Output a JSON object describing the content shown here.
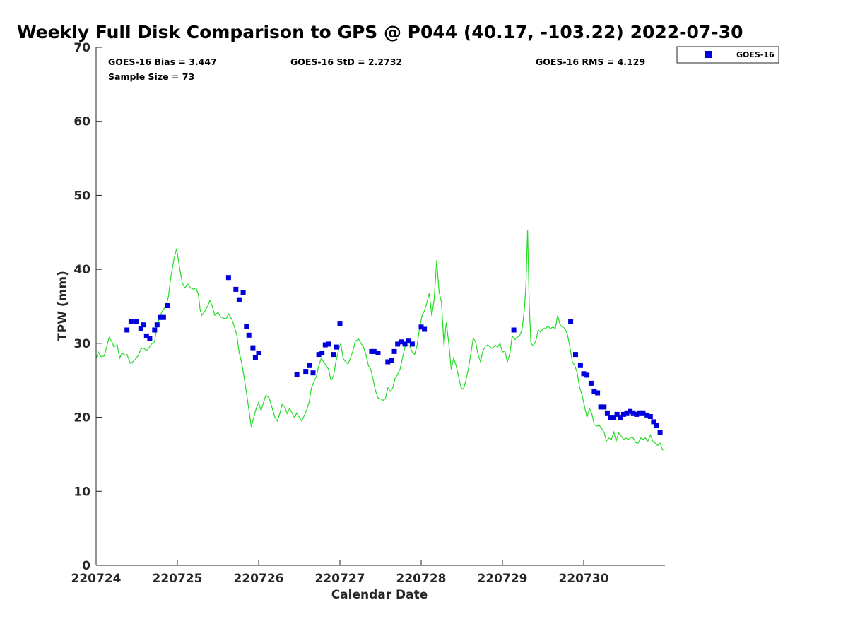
{
  "chart_data": {
    "type": "scatter",
    "title": "Weekly Full Disk Comparison to GPS @ P044 (40.17, -103.22) 2022-07-30",
    "xlabel": "Calendar Date",
    "ylabel": "TPW (mm)",
    "xlim": [
      0,
      7
    ],
    "ylim": [
      0,
      70
    ],
    "x_ticks": [
      0,
      1,
      2,
      3,
      4,
      5,
      6
    ],
    "x_tick_labels": [
      "220724",
      "220725",
      "220726",
      "220727",
      "220728",
      "220729",
      "220730"
    ],
    "y_ticks": [
      0,
      10,
      20,
      30,
      40,
      50,
      60,
      70
    ],
    "y_tick_labels": [
      "0",
      "10",
      "20",
      "30",
      "40",
      "50",
      "60",
      "70"
    ],
    "grid": false,
    "legend_position": "outside top-right",
    "stats": {
      "bias": "GOES-16 Bias = 3.447",
      "std": "GOES-16 StD = 2.2732",
      "rms": "GOES-16 RMS = 4.129",
      "sample": "Sample Size = 73"
    },
    "series": [
      {
        "name": "GOES-16",
        "kind": "scatter",
        "marker": "square",
        "color": "#0000dd",
        "points": [
          [
            0.38,
            31.8
          ],
          [
            0.43,
            32.9
          ],
          [
            0.5,
            32.9
          ],
          [
            0.55,
            32.0
          ],
          [
            0.58,
            32.5
          ],
          [
            0.62,
            31.0
          ],
          [
            0.66,
            30.7
          ],
          [
            0.72,
            31.8
          ],
          [
            0.75,
            32.5
          ],
          [
            0.79,
            33.5
          ],
          [
            0.83,
            33.5
          ],
          [
            0.88,
            35.1
          ],
          [
            1.63,
            38.9
          ],
          [
            1.72,
            37.3
          ],
          [
            1.76,
            35.9
          ],
          [
            1.81,
            36.9
          ],
          [
            1.85,
            32.3
          ],
          [
            1.88,
            31.1
          ],
          [
            1.93,
            29.4
          ],
          [
            1.96,
            28.1
          ],
          [
            2.0,
            28.7
          ],
          [
            2.47,
            25.8
          ],
          [
            2.58,
            26.2
          ],
          [
            2.63,
            27.0
          ],
          [
            2.67,
            26.0
          ],
          [
            2.74,
            28.5
          ],
          [
            2.78,
            28.7
          ],
          [
            2.82,
            29.8
          ],
          [
            2.86,
            29.9
          ],
          [
            2.92,
            28.5
          ],
          [
            2.96,
            29.5
          ],
          [
            3.0,
            32.7
          ],
          [
            3.39,
            28.9
          ],
          [
            3.42,
            28.9
          ],
          [
            3.47,
            28.7
          ],
          [
            3.59,
            27.5
          ],
          [
            3.63,
            27.7
          ],
          [
            3.67,
            28.9
          ],
          [
            3.71,
            29.9
          ],
          [
            3.76,
            30.2
          ],
          [
            3.8,
            29.9
          ],
          [
            3.84,
            30.3
          ],
          [
            3.89,
            29.9
          ],
          [
            4.0,
            32.2
          ],
          [
            4.04,
            31.9
          ],
          [
            5.14,
            31.8
          ],
          [
            5.84,
            32.9
          ],
          [
            5.9,
            28.5
          ],
          [
            5.96,
            27.0
          ],
          [
            6.0,
            25.9
          ],
          [
            6.04,
            25.7
          ],
          [
            6.09,
            24.6
          ],
          [
            6.13,
            23.5
          ],
          [
            6.17,
            23.3
          ],
          [
            6.21,
            21.4
          ],
          [
            6.25,
            21.4
          ],
          [
            6.29,
            20.6
          ],
          [
            6.33,
            20.0
          ],
          [
            6.37,
            20.0
          ],
          [
            6.41,
            20.4
          ],
          [
            6.45,
            20.0
          ],
          [
            6.49,
            20.4
          ],
          [
            6.53,
            20.6
          ],
          [
            6.57,
            20.8
          ],
          [
            6.61,
            20.6
          ],
          [
            6.65,
            20.4
          ],
          [
            6.69,
            20.6
          ],
          [
            6.73,
            20.6
          ],
          [
            6.78,
            20.3
          ],
          [
            6.82,
            20.1
          ],
          [
            6.86,
            19.4
          ],
          [
            6.9,
            18.9
          ],
          [
            6.94,
            18.0
          ]
        ]
      },
      {
        "kind": "line",
        "color": "#22dd22",
        "points": [
          [
            0.0,
            28.0
          ],
          [
            0.03,
            28.8
          ],
          [
            0.06,
            28.2
          ],
          [
            0.1,
            28.3
          ],
          [
            0.13,
            29.5
          ],
          [
            0.16,
            30.8
          ],
          [
            0.19,
            30.3
          ],
          [
            0.22,
            29.5
          ],
          [
            0.26,
            29.8
          ],
          [
            0.29,
            28.0
          ],
          [
            0.32,
            28.7
          ],
          [
            0.35,
            28.4
          ],
          [
            0.38,
            28.5
          ],
          [
            0.42,
            27.3
          ],
          [
            0.45,
            27.5
          ],
          [
            0.48,
            27.8
          ],
          [
            0.52,
            28.4
          ],
          [
            0.55,
            29.2
          ],
          [
            0.58,
            29.4
          ],
          [
            0.62,
            29.0
          ],
          [
            0.65,
            29.4
          ],
          [
            0.69,
            30.0
          ],
          [
            0.72,
            30.2
          ],
          [
            0.75,
            32.5
          ],
          [
            0.79,
            33.8
          ],
          [
            0.82,
            34.5
          ],
          [
            0.86,
            35.0
          ],
          [
            0.89,
            36.3
          ],
          [
            0.92,
            39.0
          ],
          [
            0.96,
            41.5
          ],
          [
            0.99,
            42.8
          ],
          [
            1.03,
            40.0
          ],
          [
            1.06,
            38.2
          ],
          [
            1.09,
            37.5
          ],
          [
            1.13,
            38.0
          ],
          [
            1.16,
            37.5
          ],
          [
            1.2,
            37.3
          ],
          [
            1.23,
            37.5
          ],
          [
            1.26,
            36.5
          ],
          [
            1.28,
            34.5
          ],
          [
            1.3,
            33.8
          ],
          [
            1.33,
            34.2
          ],
          [
            1.37,
            35.0
          ],
          [
            1.4,
            35.8
          ],
          [
            1.43,
            35.0
          ],
          [
            1.46,
            33.8
          ],
          [
            1.5,
            34.2
          ],
          [
            1.53,
            33.6
          ],
          [
            1.57,
            33.4
          ],
          [
            1.6,
            33.3
          ],
          [
            1.63,
            34.0
          ],
          [
            1.67,
            33.2
          ],
          [
            1.7,
            32.3
          ],
          [
            1.73,
            31.2
          ],
          [
            1.76,
            28.8
          ],
          [
            1.79,
            27.4
          ],
          [
            1.82,
            25.5
          ],
          [
            1.85,
            23.3
          ],
          [
            1.88,
            21.0
          ],
          [
            1.91,
            18.7
          ],
          [
            1.94,
            20.0
          ],
          [
            1.97,
            21.2
          ],
          [
            2.0,
            22.0
          ],
          [
            2.03,
            20.9
          ],
          [
            2.06,
            22.0
          ],
          [
            2.09,
            23.0
          ],
          [
            2.13,
            22.6
          ],
          [
            2.16,
            21.5
          ],
          [
            2.2,
            20.0
          ],
          [
            2.23,
            19.5
          ],
          [
            2.26,
            20.5
          ],
          [
            2.29,
            21.8
          ],
          [
            2.32,
            21.4
          ],
          [
            2.35,
            20.5
          ],
          [
            2.38,
            21.2
          ],
          [
            2.41,
            20.6
          ],
          [
            2.44,
            20.0
          ],
          [
            2.47,
            20.6
          ],
          [
            2.5,
            20.0
          ],
          [
            2.53,
            19.5
          ],
          [
            2.56,
            20.2
          ],
          [
            2.59,
            21.0
          ],
          [
            2.62,
            22.0
          ],
          [
            2.65,
            24.0
          ],
          [
            2.68,
            24.8
          ],
          [
            2.71,
            25.5
          ],
          [
            2.74,
            27.0
          ],
          [
            2.77,
            28.0
          ],
          [
            2.8,
            27.5
          ],
          [
            2.83,
            27.0
          ],
          [
            2.86,
            26.5
          ],
          [
            2.89,
            25.0
          ],
          [
            2.92,
            25.5
          ],
          [
            2.95,
            27.5
          ],
          [
            2.98,
            29.0
          ],
          [
            3.01,
            30.0
          ],
          [
            3.04,
            28.0
          ],
          [
            3.07,
            27.5
          ],
          [
            3.1,
            27.2
          ],
          [
            3.13,
            28.0
          ],
          [
            3.16,
            29.0
          ],
          [
            3.19,
            30.3
          ],
          [
            3.23,
            30.6
          ],
          [
            3.26,
            30.0
          ],
          [
            3.29,
            29.5
          ],
          [
            3.32,
            28.5
          ],
          [
            3.35,
            27.0
          ],
          [
            3.38,
            26.5
          ],
          [
            3.41,
            25.0
          ],
          [
            3.44,
            23.5
          ],
          [
            3.47,
            22.6
          ],
          [
            3.5,
            22.5
          ],
          [
            3.53,
            22.3
          ],
          [
            3.56,
            22.5
          ],
          [
            3.59,
            24.0
          ],
          [
            3.62,
            23.5
          ],
          [
            3.65,
            24.0
          ],
          [
            3.68,
            25.3
          ],
          [
            3.71,
            25.8
          ],
          [
            3.74,
            26.5
          ],
          [
            3.77,
            28.0
          ],
          [
            3.8,
            29.5
          ],
          [
            3.83,
            29.8
          ],
          [
            3.86,
            29.6
          ],
          [
            3.89,
            28.8
          ],
          [
            3.92,
            28.5
          ],
          [
            3.95,
            29.8
          ],
          [
            3.98,
            32.0
          ],
          [
            4.01,
            33.7
          ],
          [
            4.04,
            34.4
          ],
          [
            4.07,
            35.5
          ],
          [
            4.1,
            36.8
          ],
          [
            4.13,
            33.7
          ],
          [
            4.16,
            36.0
          ],
          [
            4.19,
            41.2
          ],
          [
            4.22,
            37.0
          ],
          [
            4.25,
            35.5
          ],
          [
            4.28,
            29.7
          ],
          [
            4.31,
            32.8
          ],
          [
            4.34,
            30.0
          ],
          [
            4.37,
            26.5
          ],
          [
            4.4,
            28.0
          ],
          [
            4.43,
            27.0
          ],
          [
            4.46,
            25.5
          ],
          [
            4.49,
            24.0
          ],
          [
            4.52,
            23.8
          ],
          [
            4.55,
            25.0
          ],
          [
            4.58,
            26.5
          ],
          [
            4.61,
            28.5
          ],
          [
            4.64,
            30.7
          ],
          [
            4.67,
            30.2
          ],
          [
            4.7,
            28.5
          ],
          [
            4.73,
            27.5
          ],
          [
            4.76,
            29.0
          ],
          [
            4.79,
            29.6
          ],
          [
            4.82,
            29.8
          ],
          [
            4.85,
            29.5
          ],
          [
            4.88,
            29.3
          ],
          [
            4.91,
            29.8
          ],
          [
            4.94,
            29.5
          ],
          [
            4.97,
            30.0
          ],
          [
            5.0,
            28.8
          ],
          [
            5.03,
            29.0
          ],
          [
            5.06,
            27.5
          ],
          [
            5.09,
            28.5
          ],
          [
            5.12,
            31.0
          ],
          [
            5.15,
            30.5
          ],
          [
            5.18,
            30.8
          ],
          [
            5.21,
            31.0
          ],
          [
            5.24,
            31.8
          ],
          [
            5.27,
            34.5
          ],
          [
            5.29,
            38.0
          ],
          [
            5.31,
            45.3
          ],
          [
            5.33,
            35.0
          ],
          [
            5.35,
            30.0
          ],
          [
            5.38,
            29.7
          ],
          [
            5.41,
            30.3
          ],
          [
            5.44,
            31.8
          ],
          [
            5.47,
            31.5
          ],
          [
            5.5,
            32.0
          ],
          [
            5.53,
            32.0
          ],
          [
            5.56,
            32.3
          ],
          [
            5.59,
            32.0
          ],
          [
            5.62,
            32.2
          ],
          [
            5.65,
            32.0
          ],
          [
            5.68,
            33.8
          ],
          [
            5.71,
            32.5
          ],
          [
            5.74,
            32.2
          ],
          [
            5.77,
            32.0
          ],
          [
            5.8,
            31.2
          ],
          [
            5.83,
            29.5
          ],
          [
            5.86,
            27.5
          ],
          [
            5.89,
            27.0
          ],
          [
            5.92,
            26.0
          ],
          [
            5.95,
            24.0
          ],
          [
            5.98,
            23.0
          ],
          [
            6.01,
            21.5
          ],
          [
            6.04,
            20.0
          ],
          [
            6.07,
            21.2
          ],
          [
            6.1,
            20.5
          ],
          [
            6.13,
            19.0
          ],
          [
            6.16,
            18.8
          ],
          [
            6.19,
            18.9
          ],
          [
            6.22,
            18.5
          ],
          [
            6.25,
            18.0
          ],
          [
            6.28,
            16.8
          ],
          [
            6.31,
            17.2
          ],
          [
            6.34,
            17.0
          ],
          [
            6.37,
            18.0
          ],
          [
            6.4,
            16.8
          ],
          [
            6.43,
            17.9
          ],
          [
            6.46,
            17.5
          ],
          [
            6.49,
            17.0
          ],
          [
            6.52,
            17.2
          ],
          [
            6.55,
            17.0
          ],
          [
            6.58,
            17.3
          ],
          [
            6.61,
            17.2
          ],
          [
            6.64,
            16.6
          ],
          [
            6.67,
            16.5
          ],
          [
            6.7,
            17.2
          ],
          [
            6.73,
            17.0
          ],
          [
            6.76,
            17.2
          ],
          [
            6.79,
            16.8
          ],
          [
            6.82,
            17.6
          ],
          [
            6.85,
            16.8
          ],
          [
            6.88,
            16.5
          ],
          [
            6.91,
            16.2
          ],
          [
            6.94,
            16.5
          ],
          [
            6.97,
            15.6
          ],
          [
            6.99,
            15.8
          ]
        ]
      }
    ]
  }
}
